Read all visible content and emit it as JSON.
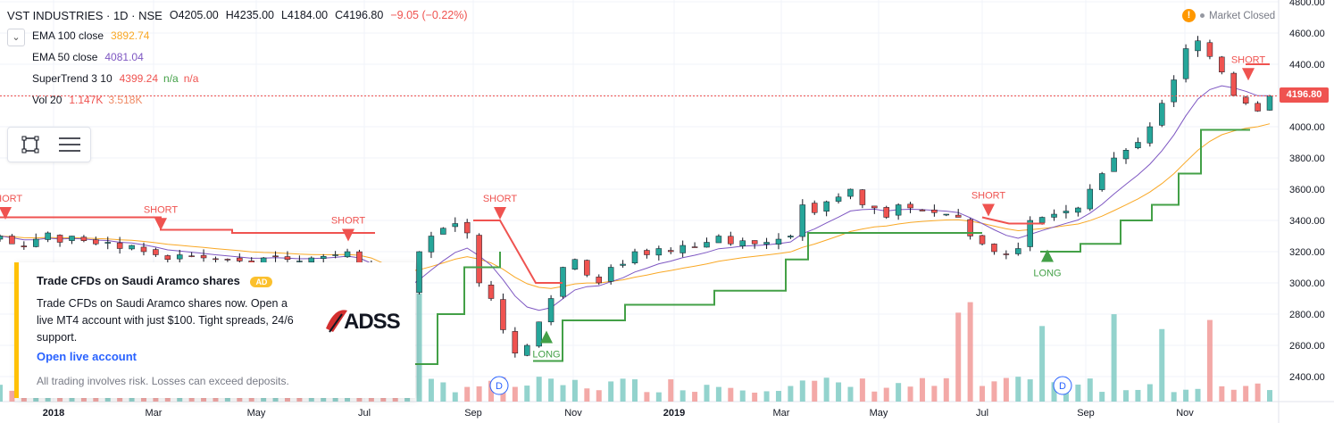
{
  "header": {
    "symbol": "VST INDUSTRIES · 1D · NSE",
    "open": "O4205.00",
    "high": "H4235.00",
    "low": "L4184.00",
    "close": "C4196.80",
    "change": "−9.05 (−0.22%)"
  },
  "indicators": [
    {
      "name": "EMA 100 close",
      "v1": "3892.74",
      "v2": "",
      "v3": "",
      "color": "#f9a825"
    },
    {
      "name": "EMA 50 close",
      "v1": "4081.04",
      "v2": "",
      "v3": "",
      "color": "#7e57c2"
    },
    {
      "name": "SuperTrend 3 10",
      "v1": "4399.24",
      "v2": "n/a",
      "v3": "n/a",
      "color": "#ef5350"
    },
    {
      "name": "Vol 20",
      "v1": "1.147K",
      "v2": "3.518K",
      "v3": "",
      "color": "#ef5350"
    }
  ],
  "market_status": "Market Closed",
  "last_price_tag": "4196.80",
  "price_axis": [
    "4800.00",
    "4600.00",
    "4400.00",
    "4200.00",
    "4000.00",
    "3800.00",
    "3600.00",
    "3400.00",
    "3200.00",
    "3000.00",
    "2800.00",
    "2600.00",
    "2400.00"
  ],
  "time_axis": [
    "2018",
    "Mar",
    "May",
    "Jul",
    "Sep",
    "Nov",
    "2019",
    "Mar",
    "May",
    "Jul",
    "Sep",
    "Nov"
  ],
  "signals": [
    "SHORT",
    "SHORT",
    "SHORT",
    "SHORT",
    "LONG",
    "SHORT",
    "LONG",
    "SHORT"
  ],
  "dividend_marker": "D",
  "ad": {
    "title": "Trade CFDs on Saudi Aramco shares",
    "badge": "AD",
    "body": "Trade CFDs on Saudi Aramco shares now. Open a live MT4 account with just $100. Tight spreads, 24/6 support.",
    "cta": "Open live account",
    "disclaimer": "All trading involves risk. Losses can exceed deposits.",
    "logo_text": "ADSS"
  },
  "colors": {
    "up": "#26a69a",
    "down": "#ef5350",
    "supertrend_up": "#43a047",
    "supertrend_down": "#ef5350",
    "ema100": "#f9a825",
    "ema50": "#7e57c2",
    "vol_up": "#80cbc4",
    "vol_down": "#f19a98"
  },
  "chart_data": {
    "type": "candlestick",
    "ylim": [
      2300,
      4800
    ],
    "close_series_approx": [
      3300,
      3250,
      3230,
      3280,
      3320,
      3260,
      3300,
      3270,
      3250,
      3260,
      3220,
      3240,
      3200,
      3180,
      3150,
      3180,
      3170,
      3160,
      3150,
      3150,
      3140,
      3130,
      3160,
      3170,
      3150,
      3140,
      3160,
      3170,
      3180,
      3200,
      3120,
      3000,
      2800,
      2700,
      2950,
      3200,
      3300,
      3350,
      3380,
      3320,
      3000,
      2900,
      2700,
      2550,
      2600,
      2750,
      2900,
      3100,
      3150,
      3050,
      3000,
      3100,
      3120,
      3200,
      3180,
      3220,
      3200,
      3240,
      3230,
      3260,
      3300,
      3250,
      3270,
      3250,
      3260,
      3280,
      3300,
      3500,
      3450,
      3520,
      3550,
      3600,
      3500,
      3480,
      3420,
      3500,
      3480,
      3460,
      3450,
      3440,
      3420,
      3300,
      3250,
      3200,
      3180,
      3220,
      3400,
      3420,
      3440,
      3460,
      3480,
      3600,
      3700,
      3800,
      3850,
      3900,
      4000,
      4150,
      4300,
      4500,
      4550,
      4450,
      4350,
      4200,
      4150,
      4100,
      4196.8
    ],
    "ema100_last": 3892.74,
    "ema50_last": 4081.04,
    "supertrend_last": 4399.24,
    "signals": [
      {
        "label": "SHORT",
        "x": "2018-01"
      },
      {
        "label": "SHORT",
        "x": "2018-03"
      },
      {
        "label": "SHORT",
        "x": "2018-06"
      },
      {
        "label": "SHORT",
        "x": "2018-09"
      },
      {
        "label": "LONG",
        "x": "2018-10"
      },
      {
        "label": "SHORT",
        "x": "2019-07"
      },
      {
        "label": "LONG",
        "x": "2019-08"
      },
      {
        "label": "SHORT",
        "x": "2019-11"
      }
    ]
  }
}
